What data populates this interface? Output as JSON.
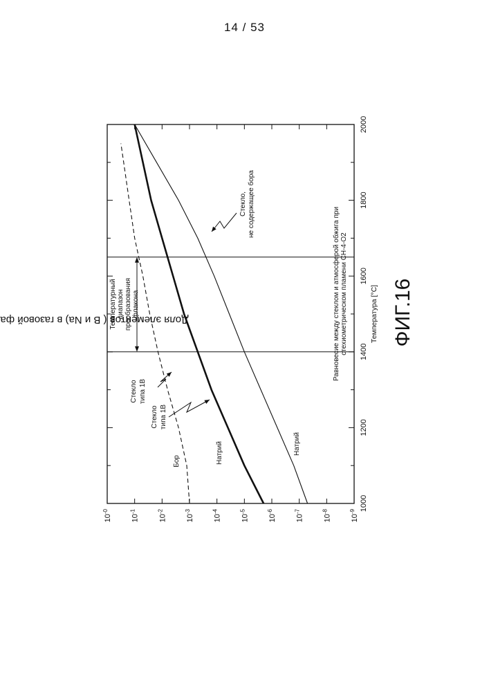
{
  "page": {
    "number": "14 / 53",
    "figure_label": "ФИГ.16"
  },
  "chart_data": {
    "type": "line",
    "title": "",
    "xlabel": "Температура [°C]",
    "ylabel": "Доля элементов  ( B и Na)    в газовой фазе",
    "xlim": [
      1000,
      2000
    ],
    "ylim": [
      -9,
      0
    ],
    "y_scale": "log",
    "x_ticks": [
      "1000",
      "1200",
      "1400",
      "1600",
      "1800",
      "2000"
    ],
    "y_ticks": [
      "10-0",
      "10-1",
      "10-2",
      "10-3",
      "10-4",
      "10-5",
      "10-6",
      "10-7",
      "10-8",
      "10-9"
    ],
    "grid": false,
    "series": [
      {
        "name": "Бор",
        "style": "dashed",
        "color": "#111111",
        "x": [
          1000,
          1100,
          1200,
          1300,
          1400,
          1500,
          1600,
          1700,
          1800,
          1900,
          1950
        ],
        "y": [
          -3.0,
          -2.9,
          -2.6,
          -2.2,
          -1.85,
          -1.55,
          -1.3,
          -1.0,
          -0.8,
          -0.6,
          -0.5
        ]
      },
      {
        "name": "Натрий",
        "style": "bold",
        "color": "#111111",
        "x": [
          1000,
          1050,
          1100,
          1200,
          1300,
          1400,
          1500,
          1600,
          1700,
          1800,
          1900,
          2000
        ],
        "y": [
          -5.7,
          -5.35,
          -5.0,
          -4.4,
          -3.8,
          -3.3,
          -2.8,
          -2.4,
          -2.0,
          -1.6,
          -1.3,
          -1.0
        ]
      },
      {
        "name": "Натрий",
        "style": "thin",
        "color": "#111111",
        "x": [
          1000,
          1100,
          1200,
          1300,
          1400,
          1500,
          1600,
          1700,
          1800,
          1900,
          2000
        ],
        "y": [
          -7.3,
          -6.8,
          -6.2,
          -5.6,
          -5.0,
          -4.45,
          -3.9,
          -3.3,
          -2.6,
          -1.8,
          -1.0
        ]
      }
    ],
    "vertical_lines_x": [
      1400,
      1650
    ],
    "annotations": {
      "range_label": [
        "Температурный",
        "диапазон",
        "преобразования",
        "флакона"
      ],
      "glass_1b_a": [
        "Стекло",
        "типа 1В"
      ],
      "glass_1b_b": [
        "Стекло",
        "типа 1В"
      ],
      "glass_boron_free": [
        "Стекло,",
        "не содержащее бора"
      ],
      "equilibrium": [
        "Равновесие между стеклом и атмосферой обжига при",
        "стехиометрическом пламени CH-4-O2"
      ],
      "label_boron": "Бор",
      "label_sodium_bold": "Натрий",
      "label_sodium_thin": "Натрий"
    }
  }
}
